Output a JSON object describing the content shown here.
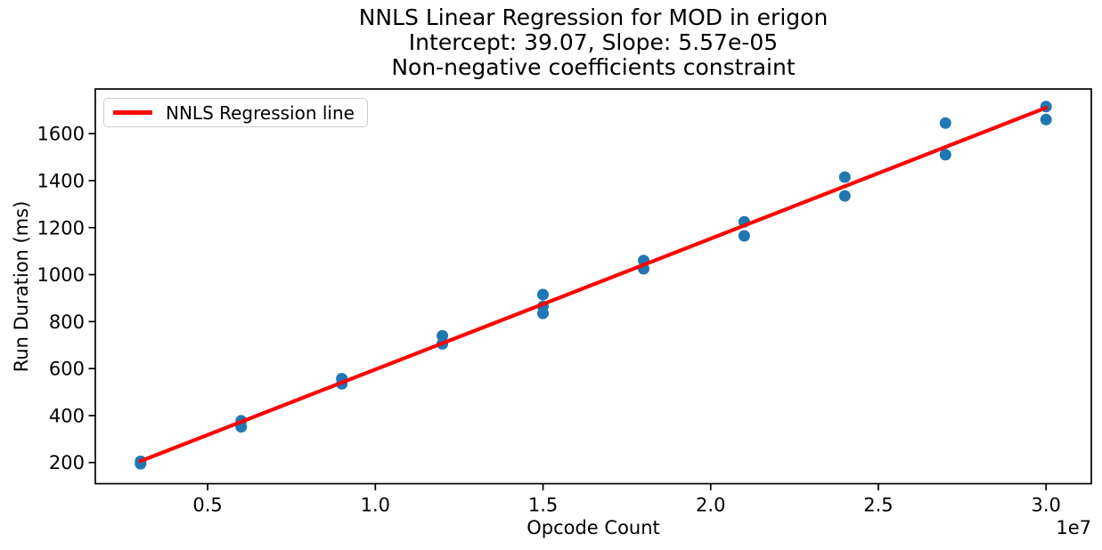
{
  "title": {
    "line1": "NNLS Linear Regression for MOD in erigon",
    "line2": "Intercept: 39.07, Slope: 5.57e-05",
    "line3": "Non-negative coefficients constraint"
  },
  "legend": {
    "label": "NNLS Regression line"
  },
  "axes": {
    "xlabel": "Opcode Count",
    "ylabel": "Run Duration (ms)",
    "x_offset_label": "1e7"
  },
  "colors": {
    "scatter_point": "#1f77b4",
    "regression_line": "#ff0000",
    "spine": "#000000",
    "legend_border": "#cccccc"
  },
  "chart_data": {
    "type": "scatter",
    "title": "NNLS Linear Regression for MOD in erigon",
    "subtitle": "Intercept: 39.07, Slope: 5.57e-05",
    "subtitle2": "Non-negative coefficients constraint",
    "xlabel": "Opcode Count",
    "ylabel": "Run Duration (ms)",
    "x_offset_text": "1e7",
    "grid": false,
    "legend_position": "upper left",
    "legend_entries": [
      "NNLS Regression line"
    ],
    "xlim": [
      1650000,
      31350000
    ],
    "ylim": [
      110,
      1790
    ],
    "x_ticks": [
      5000000,
      10000000,
      15000000,
      20000000,
      25000000,
      30000000
    ],
    "x_tick_labels": [
      "0.5",
      "1.0",
      "1.5",
      "2.0",
      "2.5",
      "3.0"
    ],
    "y_ticks": [
      200,
      400,
      600,
      800,
      1000,
      1200,
      1400,
      1600
    ],
    "y_tick_labels": [
      "200",
      "400",
      "600",
      "800",
      "1000",
      "1200",
      "1400",
      "1600"
    ],
    "points": [
      [
        3000000,
        205
      ],
      [
        3000000,
        195
      ],
      [
        6000000,
        378
      ],
      [
        6000000,
        352
      ],
      [
        9000000,
        557
      ],
      [
        9000000,
        535
      ],
      [
        12000000,
        740
      ],
      [
        12000000,
        705
      ],
      [
        15000000,
        915
      ],
      [
        15000000,
        865
      ],
      [
        15000000,
        835
      ],
      [
        18000000,
        1060
      ],
      [
        18000000,
        1025
      ],
      [
        21000000,
        1225
      ],
      [
        21000000,
        1165
      ],
      [
        24000000,
        1415
      ],
      [
        24000000,
        1335
      ],
      [
        27000000,
        1645
      ],
      [
        27000000,
        1510
      ],
      [
        30000000,
        1715
      ],
      [
        30000000,
        1660
      ]
    ],
    "regression": {
      "label": "NNLS Regression line",
      "intercept": 39.07,
      "slope": 5.57e-05,
      "x_start": 3000000,
      "x_end": 30000000
    }
  }
}
